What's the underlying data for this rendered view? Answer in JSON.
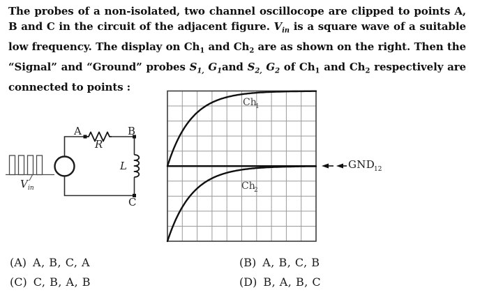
{
  "question": {
    "lines": [
      [
        {
          "t": "The probes of a non-isolated, two channel oscillocope are clipped to points A,"
        }
      ],
      [
        {
          "t": "B and C in the circuit of the adjacent figure. "
        },
        {
          "t": "V",
          "s": "i"
        },
        {
          "t": "in",
          "s": "is"
        },
        {
          "t": " is a square wave of a suitable"
        }
      ],
      [
        {
          "t": "low frequency. The display on Ch",
          "s": ""
        },
        {
          "t": "1",
          "s": "s"
        },
        {
          "t": " and Ch"
        },
        {
          "t": "2",
          "s": "s"
        },
        {
          "t": " are as shown on the right. Then the"
        }
      ],
      [
        {
          "t": "“Signal” and “Ground” probes "
        },
        {
          "t": "S",
          "s": "i"
        },
        {
          "t": "1,",
          "s": "is"
        },
        {
          "t": " "
        },
        {
          "t": "G",
          "s": "i"
        },
        {
          "t": "1",
          "s": "is"
        },
        {
          "t": "and "
        },
        {
          "t": "S",
          "s": "i"
        },
        {
          "t": "2,",
          "s": "is"
        },
        {
          "t": " "
        },
        {
          "t": "G",
          "s": "i"
        },
        {
          "t": "2",
          "s": "is"
        },
        {
          "t": " of Ch"
        },
        {
          "t": "1",
          "s": "s"
        },
        {
          "t": " and Ch"
        },
        {
          "t": "2",
          "s": "s"
        },
        {
          "t": " respectively are"
        }
      ],
      [
        {
          "t": "connected to points :"
        }
      ]
    ]
  },
  "circuit": {
    "source_label": "V",
    "source_label_sub": "in",
    "node_a": "A",
    "node_b": "B",
    "node_c": "C",
    "resistor_label": "R",
    "inductor_label": "L"
  },
  "scope": {
    "ch1_label": "Ch",
    "ch1_sub": "1",
    "ch2_label": "Ch",
    "ch2_sub": "2",
    "gnd_label": "GND",
    "gnd_sub": "12"
  },
  "chart_data": {
    "type": "line",
    "title": "Oscilloscope display of Ch1 and Ch2",
    "grid": {
      "cols": 10,
      "rows": 10,
      "grid_on": true
    },
    "series": [
      {
        "name": "Ch1",
        "shape": "exp_rise",
        "start_level_div": 0,
        "end_level_div": 5,
        "tau_div": 1.6,
        "description": "exponential rise from center reference line up to +5 divisions"
      },
      {
        "name": "Ch2",
        "shape": "exp_rise",
        "start_level_div": -5,
        "end_level_div": 0,
        "tau_div": 1.65,
        "description": "exponential rise from -5 divisions up to center reference line"
      },
      {
        "name": "GND12",
        "shape": "reference_line",
        "level_div": 0,
        "description": "common ground level of both channels at center line, marked by left-pointing arrow"
      }
    ]
  },
  "options": [
    {
      "key": "(A)",
      "text": "A, B, C, A"
    },
    {
      "key": "(B)",
      "text": "A, B, C, B"
    },
    {
      "key": "(C)",
      "text": "C, B, A, B"
    },
    {
      "key": "(D)",
      "text": "B, A, B, C"
    }
  ]
}
